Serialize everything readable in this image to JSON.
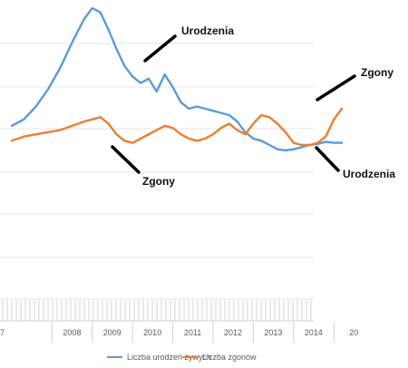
{
  "chart_data": {
    "type": "line",
    "title": "",
    "xlabel": "",
    "ylabel": "",
    "x_tick_labels": [
      "7",
      "2008",
      "2009",
      "2010",
      "2011",
      "2012",
      "2013",
      "2014",
      "20"
    ],
    "grid": true,
    "legend_position": "bottom",
    "series": [
      {
        "name": "Liczba urodzeń żywych",
        "color": "#5B9BD5",
        "x": [
          2007.0,
          2007.3,
          2007.6,
          2007.9,
          2008.2,
          2008.5,
          2008.8,
          2009.0,
          2009.2,
          2009.4,
          2009.6,
          2009.8,
          2010.0,
          2010.2,
          2010.4,
          2010.6,
          2010.8,
          2011.0,
          2011.2,
          2011.4,
          2011.6,
          2011.8,
          2012.0,
          2012.2,
          2012.4,
          2012.6,
          2012.8,
          2013.0,
          2013.2,
          2013.4,
          2013.6,
          2013.8,
          2014.0,
          2014.2,
          2014.4,
          2014.6,
          2014.8,
          2015.0,
          2015.2
        ],
        "y": [
          118,
          124,
          136,
          152,
          172,
          196,
          218,
          228,
          224,
          208,
          190,
          174,
          164,
          158,
          162,
          150,
          166,
          154,
          140,
          134,
          136,
          134,
          132,
          130,
          128,
          122,
          112,
          106,
          104,
          100,
          96,
          95,
          96,
          98,
          100,
          101,
          103,
          102,
          102
        ],
        "y_unit": "relative (axis values not printed)"
      },
      {
        "name": "Liczba zgonów",
        "color": "#ED7D31",
        "x": [
          2007.0,
          2007.3,
          2007.6,
          2007.9,
          2008.2,
          2008.5,
          2008.8,
          2009.0,
          2009.2,
          2009.4,
          2009.6,
          2009.8,
          2010.0,
          2010.2,
          2010.4,
          2010.6,
          2010.8,
          2011.0,
          2011.2,
          2011.4,
          2011.6,
          2011.8,
          2012.0,
          2012.2,
          2012.4,
          2012.6,
          2012.8,
          2013.0,
          2013.2,
          2013.4,
          2013.6,
          2013.8,
          2014.0,
          2014.2,
          2014.4,
          2014.6,
          2014.8,
          2015.0,
          2015.2
        ],
        "y": [
          104,
          108,
          110,
          112,
          114,
          118,
          122,
          124,
          126,
          120,
          110,
          104,
          102,
          106,
          110,
          114,
          118,
          116,
          110,
          106,
          104,
          106,
          110,
          116,
          120,
          114,
          110,
          120,
          128,
          126,
          120,
          112,
          102,
          100,
          100,
          102,
          108,
          124,
          134
        ],
        "y_unit": "relative (axis values not printed)"
      }
    ]
  },
  "annotations": [
    {
      "text": "Urodzenia",
      "color": "#111111"
    },
    {
      "text": "Zgony",
      "color": "#111111"
    },
    {
      "text": "Zgony",
      "color": "#111111"
    },
    {
      "text": "Urodzenia",
      "color": "#111111"
    }
  ],
  "legend": {
    "items": [
      {
        "label": "Liczba urodzeń żywych",
        "color": "#5B9BD5"
      },
      {
        "label": "Liczba zgonów",
        "color": "#ED7D31"
      }
    ]
  }
}
